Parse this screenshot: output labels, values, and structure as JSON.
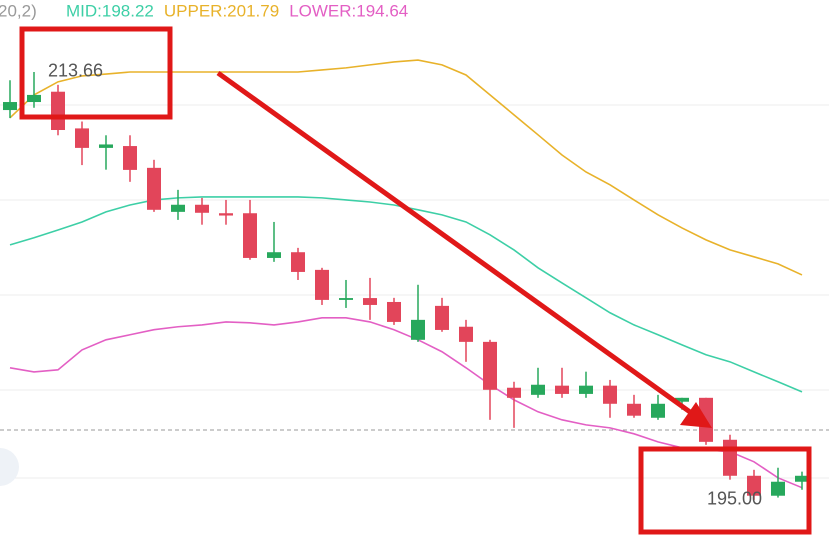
{
  "chart_data": {
    "type": "candlestick",
    "indicator": "20,2)",
    "ylim": [
      192.9,
      216.8
    ],
    "up_color": "#27a85c",
    "down_color": "#e2455a",
    "open": [
      212.0,
      212.35,
      212.8,
      211.2,
      210.35,
      210.43,
      209.48,
      207.56,
      207.87,
      207.5,
      207.5,
      205.55,
      205.8,
      205.03,
      203.72,
      203.8,
      203.63,
      201.98,
      203.46,
      202.55,
      201.89,
      199.89,
      199.58,
      199.98,
      199.62,
      199.98,
      199.19,
      198.58,
      199.28,
      199.45,
      197.62,
      196.05,
      195.18,
      195.79
    ],
    "high": [
      213.3,
      213.66,
      213.1,
      211.5,
      210.9,
      210.9,
      209.83,
      208.52,
      208.17,
      208.08,
      208.08,
      207.12,
      205.99,
      205.12,
      204.59,
      204.68,
      203.81,
      204.38,
      203.81,
      202.85,
      201.98,
      200.15,
      200.76,
      200.76,
      200.59,
      200.23,
      199.58,
      199.58,
      199.45,
      199.45,
      197.84,
      196.31,
      196.4,
      196.23
    ],
    "low": [
      211.65,
      212.1,
      210.9,
      209.6,
      209.4,
      208.87,
      207.56,
      207.21,
      207.0,
      207.0,
      205.47,
      205.38,
      204.59,
      203.5,
      203.37,
      202.85,
      202.63,
      201.89,
      202.33,
      201.02,
      198.49,
      198.14,
      199.45,
      199.45,
      199.45,
      198.58,
      198.58,
      198.49,
      198.93,
      197.4,
      195.88,
      195.0,
      195.1,
      195.44
    ],
    "close": [
      212.35,
      212.66,
      211.13,
      210.35,
      210.5,
      209.39,
      207.65,
      207.87,
      207.52,
      207.4,
      205.55,
      205.8,
      204.94,
      203.72,
      203.8,
      203.5,
      202.76,
      202.85,
      202.41,
      201.89,
      199.8,
      199.45,
      200.02,
      199.62,
      199.98,
      199.19,
      198.67,
      199.19,
      199.45,
      197.53,
      196.05,
      195.18,
      195.79,
      196.05
    ],
    "series": [
      {
        "name": "MID:198.22",
        "color": "#3dcfa6",
        "values": [
          206.12,
          206.43,
          206.77,
          207.12,
          207.56,
          207.86,
          208.08,
          208.17,
          208.21,
          208.21,
          208.21,
          208.21,
          208.21,
          208.17,
          208.08,
          207.99,
          207.86,
          207.65,
          207.43,
          207.12,
          206.56,
          205.9,
          205.12,
          204.46,
          203.81,
          203.16,
          202.63,
          202.2,
          201.76,
          201.33,
          201.02,
          200.58,
          200.15,
          199.71
        ]
      },
      {
        "name": "UPPER:201.79",
        "color": "#e8b22a",
        "values": [
          211.66,
          212.66,
          213.23,
          213.49,
          213.57,
          213.66,
          213.66,
          213.66,
          213.66,
          213.66,
          213.66,
          213.66,
          213.66,
          213.75,
          213.84,
          213.97,
          214.1,
          214.18,
          213.97,
          213.53,
          212.66,
          211.79,
          210.92,
          210.04,
          209.3,
          208.74,
          208.08,
          207.43,
          206.86,
          206.34,
          205.9,
          205.6,
          205.29,
          204.81
        ]
      },
      {
        "name": "LOWER:194.64",
        "color": "#e35fc4",
        "values": [
          200.76,
          200.58,
          200.67,
          201.54,
          201.98,
          202.2,
          202.42,
          202.55,
          202.63,
          202.76,
          202.72,
          202.63,
          202.76,
          202.94,
          202.94,
          202.76,
          202.42,
          201.98,
          201.46,
          200.76,
          200.02,
          199.36,
          198.84,
          198.49,
          198.27,
          198.14,
          197.88,
          197.53,
          197.27,
          197.18,
          197.1,
          196.66,
          195.96,
          195.53
        ]
      }
    ],
    "annotations": [
      {
        "text": "213.66",
        "index": 1
      },
      {
        "text": "195.00",
        "index": 31
      }
    ]
  }
}
